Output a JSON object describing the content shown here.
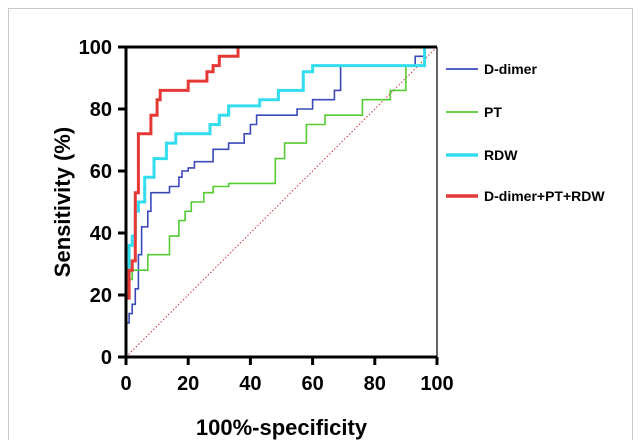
{
  "chart_data": {
    "type": "line",
    "title": "",
    "xlabel": "100%-specificity",
    "ylabel": "Sensitivity (%)",
    "xlim": [
      0,
      100
    ],
    "ylim": [
      0,
      100
    ],
    "xticks": [
      "0",
      "20",
      "40",
      "60",
      "80",
      "100"
    ],
    "yticks": [
      "0",
      "20",
      "40",
      "60",
      "80",
      "100"
    ],
    "legend_position": "right",
    "reference_line": {
      "x": [
        0,
        100
      ],
      "y": [
        0,
        100
      ],
      "color": "#cc3333",
      "style": "dotted"
    },
    "series": [
      {
        "name": "D-dimer",
        "color": "#3b4ab8",
        "x": [
          0,
          0,
          1,
          1,
          2,
          2,
          3,
          3,
          4,
          4,
          5,
          5,
          7,
          7,
          8,
          8,
          14,
          14,
          17,
          17,
          18,
          18,
          20,
          20,
          22,
          22,
          28,
          28,
          33,
          33,
          38,
          38,
          40,
          40,
          42,
          42,
          45,
          45,
          55,
          55,
          60,
          60,
          67,
          67,
          69,
          69,
          93,
          93,
          96,
          96,
          100
        ],
        "y": [
          0,
          11,
          11,
          14,
          14,
          17,
          17,
          22,
          22,
          33,
          33,
          42,
          42,
          47,
          47,
          53,
          53,
          55,
          55,
          58,
          58,
          60,
          60,
          61,
          61,
          63,
          63,
          67,
          67,
          69,
          69,
          72,
          72,
          75,
          75,
          78,
          78,
          78,
          78,
          80,
          80,
          83,
          83,
          86,
          86,
          94,
          94,
          97,
          97,
          100,
          100
        ]
      },
      {
        "name": "PT",
        "color": "#55cc33",
        "x": [
          0,
          0,
          2,
          2,
          7,
          7,
          10,
          10,
          14,
          14,
          17,
          17,
          19,
          19,
          21,
          21,
          25,
          25,
          28,
          28,
          30,
          30,
          33,
          33,
          48,
          48,
          51,
          51,
          55,
          55,
          58,
          58,
          61,
          61,
          64,
          64,
          68,
          68,
          76,
          76,
          80,
          80,
          85,
          85,
          90,
          90,
          96,
          96,
          100
        ],
        "y": [
          0,
          25,
          25,
          28,
          28,
          33,
          33,
          33,
          33,
          39,
          39,
          44,
          44,
          47,
          47,
          50,
          50,
          53,
          53,
          55,
          55,
          55,
          55,
          56,
          56,
          64,
          64,
          69,
          69,
          69,
          69,
          75,
          75,
          75,
          75,
          78,
          78,
          78,
          78,
          83,
          83,
          83,
          83,
          86,
          86,
          94,
          94,
          100,
          100
        ]
      },
      {
        "name": "RDW",
        "color": "#33ddee",
        "x": [
          0,
          0,
          1,
          1,
          2,
          2,
          3,
          3,
          4,
          4,
          6,
          6,
          9,
          9,
          13,
          13,
          16,
          16,
          27,
          27,
          30,
          30,
          33,
          33,
          43,
          43,
          49,
          49,
          57,
          57,
          60,
          60,
          96,
          96,
          100
        ],
        "y": [
          0,
          29,
          29,
          36,
          36,
          39,
          39,
          47,
          47,
          50,
          50,
          58,
          58,
          64,
          64,
          69,
          69,
          72,
          72,
          75,
          75,
          78,
          78,
          81,
          81,
          83,
          83,
          86,
          86,
          92,
          92,
          94,
          94,
          100,
          100
        ]
      },
      {
        "name": "D-dimer+PT+RDW",
        "color": "#e53935",
        "x": [
          0,
          0,
          1,
          1,
          2,
          2,
          3,
          3,
          4,
          4,
          8,
          8,
          10,
          10,
          11,
          11,
          16,
          16,
          20,
          20,
          26,
          26,
          28,
          28,
          30,
          30,
          33,
          33,
          36,
          36,
          39,
          39,
          43,
          43,
          100
        ],
        "y": [
          0,
          19,
          19,
          28,
          28,
          31,
          31,
          53,
          53,
          72,
          72,
          78,
          78,
          83,
          83,
          86,
          86,
          86,
          86,
          89,
          89,
          92,
          92,
          94,
          94,
          97,
          97,
          97,
          97,
          100,
          100,
          100,
          100,
          100,
          100
        ]
      }
    ]
  }
}
